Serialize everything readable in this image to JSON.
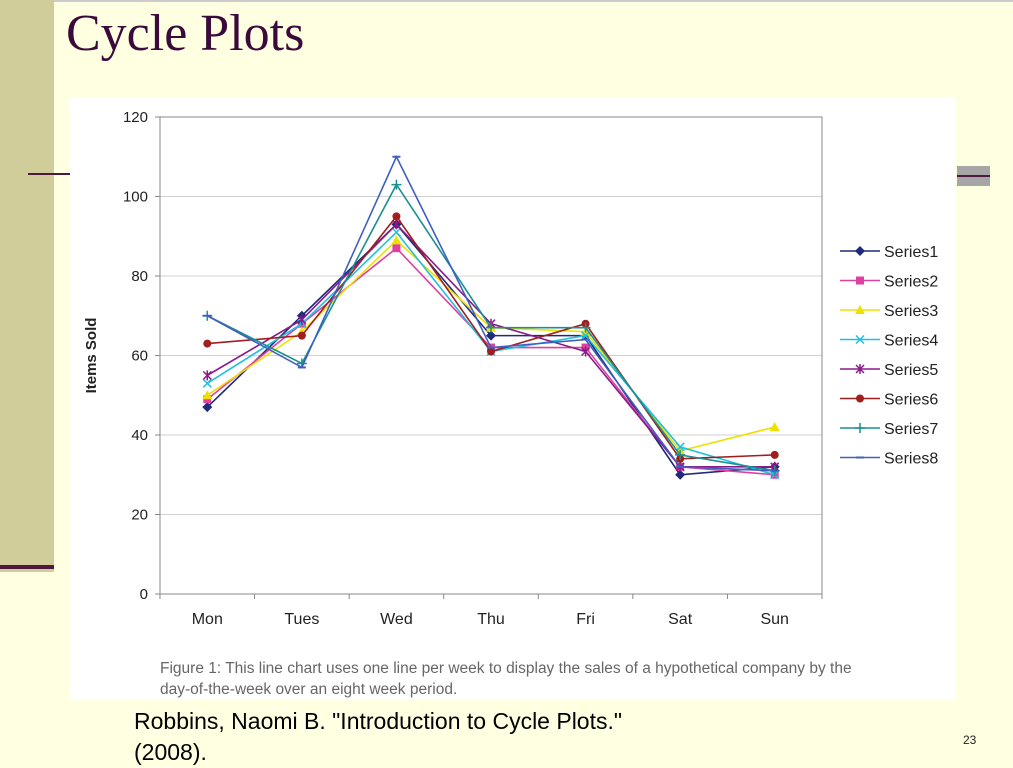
{
  "slide": {
    "title": "Cycle Plots",
    "page_number": "23",
    "caption": "Figure 1: This line chart uses one line per week to display the sales of a hypothetical company by the day-of-the-week over an eight week period.",
    "citation": "Robbins, Naomi B. \"Introduction to Cycle Plots.\" (2008)."
  },
  "chart_data": {
    "type": "line",
    "title": "",
    "xlabel": "",
    "ylabel": "Items Sold",
    "ylim": [
      0,
      120
    ],
    "yticks": [
      0,
      20,
      40,
      60,
      80,
      100,
      120
    ],
    "grid": true,
    "legend_position": "right",
    "categories": [
      "Mon",
      "Tues",
      "Wed",
      "Thu",
      "Fri",
      "Sat",
      "Sun"
    ],
    "series": [
      {
        "name": "Series1",
        "color": "#1f2a7a",
        "marker": "diamond",
        "values": [
          47,
          70,
          93,
          65,
          65,
          30,
          32
        ]
      },
      {
        "name": "Series2",
        "color": "#e040a0",
        "marker": "square",
        "values": [
          49,
          68,
          87,
          62,
          62,
          32,
          30
        ]
      },
      {
        "name": "Series3",
        "color": "#f0e000",
        "marker": "triangle",
        "values": [
          50,
          66,
          89,
          67,
          66,
          36,
          42
        ]
      },
      {
        "name": "Series4",
        "color": "#20c0e0",
        "marker": "x",
        "values": [
          53,
          68,
          91,
          61,
          65,
          37,
          30
        ]
      },
      {
        "name": "Series5",
        "color": "#8a1a8a",
        "marker": "star",
        "values": [
          55,
          69,
          93,
          68,
          61,
          32,
          32
        ]
      },
      {
        "name": "Series6",
        "color": "#a01e1e",
        "marker": "circle",
        "values": [
          63,
          65,
          95,
          61,
          68,
          34,
          35
        ]
      },
      {
        "name": "Series7",
        "color": "#1a9090",
        "marker": "plus",
        "values": [
          70,
          58,
          103,
          67,
          67,
          35,
          31
        ]
      },
      {
        "name": "Series8",
        "color": "#4060c0",
        "marker": "dash",
        "values": [
          70,
          57,
          110,
          62,
          64,
          32,
          31
        ]
      }
    ]
  }
}
